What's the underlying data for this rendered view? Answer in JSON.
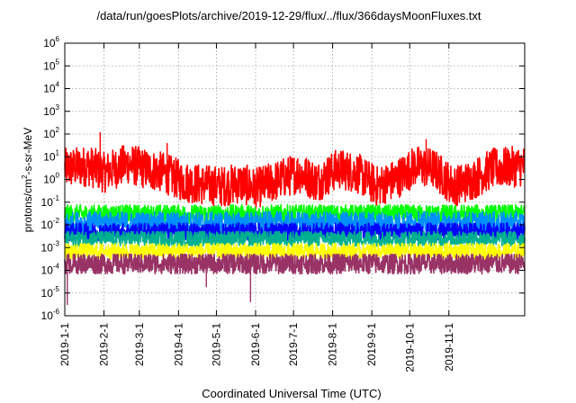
{
  "chart_data": {
    "type": "line",
    "title": "/data/run/goesPlots/archive/2019-12-29/flux/../flux/366daysMoonFluxes.txt",
    "xlabel": "Coordinated Universal Time (UTC)",
    "ylabel": {
      "base": "protons/cm",
      "sup": "2",
      "rest": "-s-sr-MeV"
    },
    "yscale": "log",
    "ylim": [
      1e-06,
      1000000.0
    ],
    "xlim": [
      "2019-01-01",
      "2019-12-31"
    ],
    "grid": true,
    "y_ticks": [
      {
        "base": "10",
        "exp": "-6",
        "value": 1e-06
      },
      {
        "base": "10",
        "exp": "-5",
        "value": 1e-05
      },
      {
        "base": "10",
        "exp": "-4",
        "value": 0.0001
      },
      {
        "base": "10",
        "exp": "-3",
        "value": 0.001
      },
      {
        "base": "10",
        "exp": "-2",
        "value": 0.01
      },
      {
        "base": "10",
        "exp": "-1",
        "value": 0.1
      },
      {
        "base": "10",
        "exp": "0",
        "value": 1
      },
      {
        "base": "10",
        "exp": "1",
        "value": 10
      },
      {
        "base": "10",
        "exp": "2",
        "value": 100
      },
      {
        "base": "10",
        "exp": "3",
        "value": 1000
      },
      {
        "base": "10",
        "exp": "4",
        "value": 10000
      },
      {
        "base": "10",
        "exp": "5",
        "value": 100000
      },
      {
        "base": "10",
        "exp": "6",
        "value": 1000000
      }
    ],
    "x_ticks": [
      {
        "label": "2019-1-1",
        "date": "2019-01-01"
      },
      {
        "label": "2019-2-1",
        "date": "2019-02-01"
      },
      {
        "label": "2019-3-1",
        "date": "2019-03-01"
      },
      {
        "label": "2019-4-1",
        "date": "2019-04-01"
      },
      {
        "label": "2019-5-1",
        "date": "2019-05-01"
      },
      {
        "label": "2019-6-1",
        "date": "2019-06-01"
      },
      {
        "label": "2019-7-1",
        "date": "2019-07-01"
      },
      {
        "label": "2019-8-1",
        "date": "2019-08-01"
      },
      {
        "label": "2019-9-1",
        "date": "2019-09-01"
      },
      {
        "label": "2019-10-1",
        "date": "2019-10-01"
      },
      {
        "label": "2019-11-1",
        "date": "2019-11-01"
      }
    ],
    "series": [
      {
        "color": "#ff0000",
        "typical": 3,
        "low": 0.15,
        "high": 25,
        "dates": [
          "2019-01-01",
          "2019-01-20",
          "2019-02-01",
          "2019-02-20",
          "2019-03-05",
          "2019-03-20",
          "2019-04-05",
          "2019-04-20",
          "2019-05-05",
          "2019-05-20",
          "2019-06-01",
          "2019-06-20",
          "2019-07-05",
          "2019-07-20",
          "2019-08-05",
          "2019-08-20",
          "2019-09-05",
          "2019-09-20",
          "2019-10-05",
          "2019-10-20",
          "2019-11-05",
          "2019-11-20",
          "2019-12-05",
          "2019-12-31"
        ],
        "values": [
          3,
          4,
          2,
          5,
          3,
          2,
          0.8,
          0.6,
          0.5,
          0.7,
          0.4,
          1,
          2,
          0.8,
          3,
          2,
          0.5,
          1,
          4,
          3,
          0.5,
          1,
          3,
          4
        ],
        "spikes": [
          {
            "date": "2019-01-29",
            "value": 120
          },
          {
            "date": "2019-03-01",
            "value": 15
          },
          {
            "date": "2019-03-23",
            "value": 40
          },
          {
            "date": "2019-10-14",
            "value": 60
          }
        ]
      },
      {
        "color": "#00ff00",
        "typical": 0.03,
        "low": 0.012,
        "high": 0.08
      },
      {
        "color": "#0090ff",
        "typical": 0.012,
        "low": 0.004,
        "high": 0.04
      },
      {
        "color": "#0000ff",
        "typical": 0.005,
        "low": 0.002,
        "high": 0.012
      },
      {
        "color": "#00b090",
        "typical": 0.0025,
        "low": 0.001,
        "high": 0.005
      },
      {
        "color": "#ffff00",
        "typical": 0.0007,
        "low": 0.0003,
        "high": 0.0015
      },
      {
        "color": "#993366",
        "typical": 0.0002,
        "low": 6e-05,
        "high": 0.0005,
        "spikes": [
          {
            "date": "2019-01-03",
            "value": 3e-06
          },
          {
            "date": "2019-04-23",
            "value": 1.8e-05
          },
          {
            "date": "2019-05-28",
            "value": 4e-06
          }
        ]
      }
    ]
  }
}
